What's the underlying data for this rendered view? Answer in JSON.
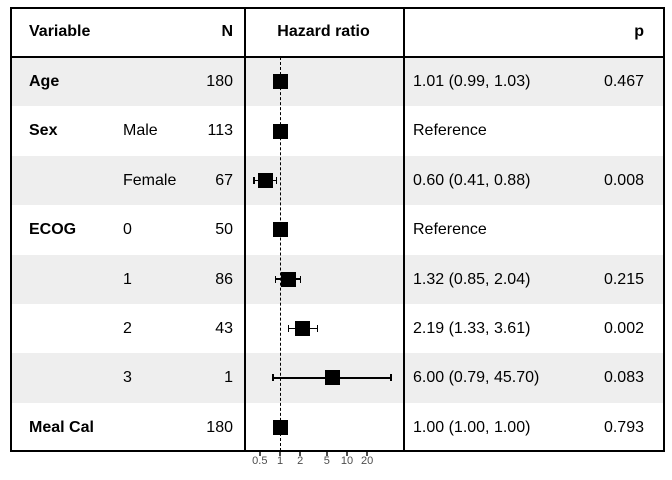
{
  "header": {
    "variable": "Variable",
    "n": "N",
    "hazard_ratio": "Hazard ratio",
    "p": "p"
  },
  "axis": {
    "tick_labels": [
      "0.5",
      "1",
      "2",
      "5",
      "10",
      "20"
    ],
    "tick_values": [
      0.5,
      1,
      2,
      5,
      10,
      20
    ],
    "scale": "log",
    "reference_value": 1
  },
  "rows": [
    {
      "variable": "Age",
      "level": "",
      "n": "180",
      "hr_ci": "1.01 (0.99, 1.03)",
      "p": "0.467",
      "est": 1.01,
      "lo": 0.99,
      "hi": 1.03,
      "reference": false,
      "shaded": true
    },
    {
      "variable": "Sex",
      "level": "Male",
      "n": "113",
      "hr_ci": "Reference",
      "p": "",
      "est": 1.0,
      "lo": null,
      "hi": null,
      "reference": true,
      "shaded": false
    },
    {
      "variable": "",
      "level": "Female",
      "n": "67",
      "hr_ci": "0.60 (0.41, 0.88)",
      "p": "0.008",
      "est": 0.6,
      "lo": 0.41,
      "hi": 0.88,
      "reference": false,
      "shaded": true
    },
    {
      "variable": "ECOG",
      "level": "0",
      "n": "50",
      "hr_ci": "Reference",
      "p": "",
      "est": 1.0,
      "lo": null,
      "hi": null,
      "reference": true,
      "shaded": false
    },
    {
      "variable": "",
      "level": "1",
      "n": "86",
      "hr_ci": "1.32 (0.85, 2.04)",
      "p": "0.215",
      "est": 1.32,
      "lo": 0.85,
      "hi": 2.04,
      "reference": false,
      "shaded": true
    },
    {
      "variable": "",
      "level": "2",
      "n": "43",
      "hr_ci": "2.19 (1.33, 3.61)",
      "p": "0.002",
      "est": 2.19,
      "lo": 1.33,
      "hi": 3.61,
      "reference": false,
      "shaded": false
    },
    {
      "variable": "",
      "level": "3",
      "n": "1",
      "hr_ci": "6.00 (0.79, 45.70)",
      "p": "0.083",
      "est": 6.0,
      "lo": 0.79,
      "hi": 45.7,
      "reference": false,
      "shaded": true
    },
    {
      "variable": "Meal Cal",
      "level": "",
      "n": "180",
      "hr_ci": "1.00 (1.00, 1.00)",
      "p": "0.793",
      "est": 1.0,
      "lo": 1.0,
      "hi": 1.0,
      "reference": false,
      "shaded": false
    }
  ],
  "colors": {
    "row_shade": "#eeeeee",
    "row_plain": "#ffffff",
    "marker": "#000000",
    "border": "#000000",
    "axis_text": "#4d4d4d",
    "text": "#000000"
  },
  "chart_data": {
    "type": "scatter",
    "subtype": "forest-plot",
    "title": "Hazard ratio forest plot",
    "xlabel": "Hazard ratio",
    "x_scale": "log",
    "x_ticks": [
      0.5,
      1,
      2,
      5,
      10,
      20
    ],
    "reference_line": 1,
    "legend": "none",
    "columns": [
      "Variable",
      "N",
      "Hazard ratio",
      "p"
    ],
    "rows": [
      {
        "variable": "Age",
        "level": null,
        "n": 180,
        "hr": 1.01,
        "ci_low": 0.99,
        "ci_high": 1.03,
        "p": 0.467
      },
      {
        "variable": "Sex",
        "level": "Male",
        "n": 113,
        "hr": 1.0,
        "ci_low": null,
        "ci_high": null,
        "p": null,
        "reference": true
      },
      {
        "variable": "Sex",
        "level": "Female",
        "n": 67,
        "hr": 0.6,
        "ci_low": 0.41,
        "ci_high": 0.88,
        "p": 0.008
      },
      {
        "variable": "ECOG",
        "level": "0",
        "n": 50,
        "hr": 1.0,
        "ci_low": null,
        "ci_high": null,
        "p": null,
        "reference": true
      },
      {
        "variable": "ECOG",
        "level": "1",
        "n": 86,
        "hr": 1.32,
        "ci_low": 0.85,
        "ci_high": 2.04,
        "p": 0.215
      },
      {
        "variable": "ECOG",
        "level": "2",
        "n": 43,
        "hr": 2.19,
        "ci_low": 1.33,
        "ci_high": 3.61,
        "p": 0.002
      },
      {
        "variable": "ECOG",
        "level": "3",
        "n": 1,
        "hr": 6.0,
        "ci_low": 0.79,
        "ci_high": 45.7,
        "p": 0.083
      },
      {
        "variable": "Meal Cal",
        "level": null,
        "n": 180,
        "hr": 1.0,
        "ci_low": 1.0,
        "ci_high": 1.0,
        "p": 0.793
      }
    ]
  }
}
